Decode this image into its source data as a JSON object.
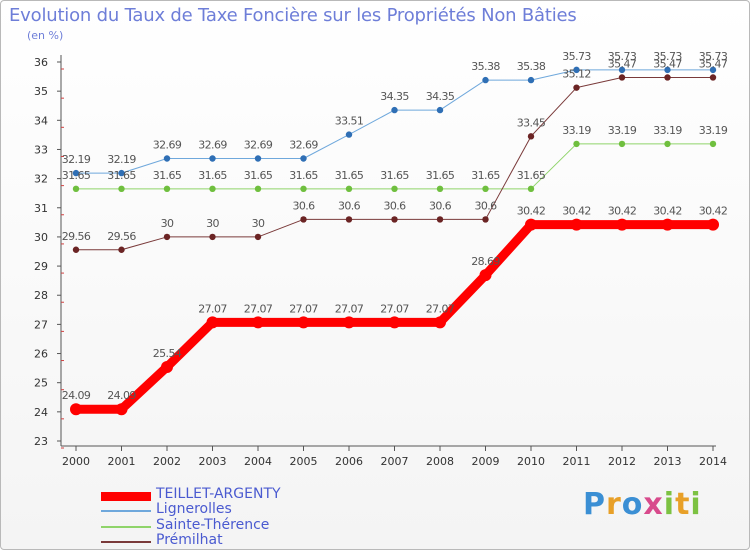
{
  "header": {
    "title": "Evolution du Taux de Taxe Foncière sur les Propriétés Non Bâties",
    "unit": "(en %)"
  },
  "logo": {
    "text": "Proxiti",
    "letters": [
      {
        "ch": "P",
        "color": "#3b8fd4"
      },
      {
        "ch": "r",
        "color": "#e8a028"
      },
      {
        "ch": "o",
        "color": "#3b8fd4"
      },
      {
        "ch": "x",
        "color": "#d84a8c"
      },
      {
        "ch": "i",
        "color": "#7cc242"
      },
      {
        "ch": "t",
        "color": "#e8a028"
      },
      {
        "ch": "i",
        "color": "#7cc242"
      }
    ]
  },
  "chart_data": {
    "type": "line",
    "title": "Evolution du Taux de Taxe Foncière sur les Propriétés Non Bâties",
    "ylabel": "(en %)",
    "ylim": [
      23,
      36
    ],
    "yticks": [
      23,
      24,
      25,
      26,
      27,
      28,
      29,
      30,
      31,
      32,
      33,
      34,
      35,
      36
    ],
    "categories": [
      "2000",
      "2001",
      "2002",
      "2003",
      "2004",
      "2005",
      "2006",
      "2007",
      "2008",
      "2009",
      "2010",
      "2011",
      "2012",
      "2013",
      "2014"
    ],
    "grid": false,
    "legend_position": "bottom-left",
    "series": [
      {
        "name": "Lignerolles",
        "color": "#6fa8dc",
        "markerColor": "#2f6fb5",
        "width": 1,
        "values": [
          32.19,
          32.19,
          32.69,
          32.69,
          32.69,
          32.69,
          33.51,
          34.35,
          34.35,
          35.38,
          35.38,
          35.73,
          35.73,
          35.73,
          35.73
        ],
        "labels": [
          "32.19",
          "32.19",
          "32.69",
          "32.69",
          "32.69",
          "32.69",
          "33.51",
          "34.35",
          "34.35",
          "35.38",
          "35.38",
          "35.73",
          "35.73",
          "35.73",
          "35.73"
        ]
      },
      {
        "name": "Sainte-Thérence",
        "color": "#8fd46a",
        "markerColor": "#6fbf3e",
        "width": 1,
        "values": [
          31.65,
          31.65,
          31.65,
          31.65,
          31.65,
          31.65,
          31.65,
          31.65,
          31.65,
          31.65,
          31.65,
          33.19,
          33.19,
          33.19,
          33.19
        ],
        "labels": [
          "31.65",
          "31.65",
          "31.65",
          "31.65",
          "31.65",
          "31.65",
          "31.65",
          "31.65",
          "31.65",
          "31.65",
          "31.65",
          "33.19",
          "33.19",
          "33.19",
          "33.19"
        ]
      },
      {
        "name": "Prémilhat",
        "color": "#7a3a3a",
        "markerColor": "#6b2424",
        "width": 1,
        "values": [
          29.56,
          29.56,
          30,
          30,
          30,
          30.6,
          30.6,
          30.6,
          30.6,
          30.6,
          33.45,
          35.12,
          35.47,
          35.47,
          35.47
        ],
        "labels": [
          "29.56",
          "29.56",
          "30",
          "30",
          "30",
          "30.6",
          "30.6",
          "30.6",
          "30.6",
          "30.6",
          "33.45",
          "35.12",
          "35.47",
          "35.47",
          "35.47"
        ]
      },
      {
        "name": "TEILLET-ARGENTY",
        "color": "#ff0000",
        "markerColor": "#ff0000",
        "width": 9,
        "values": [
          24.09,
          24.09,
          25.54,
          27.07,
          27.07,
          27.07,
          27.07,
          27.07,
          27.07,
          28.69,
          30.42,
          30.42,
          30.42,
          30.42,
          30.42
        ],
        "labels": [
          "24.09",
          "24.09",
          "25.54",
          "27.07",
          "27.07",
          "27.07",
          "27.07",
          "27.07",
          "27.07",
          "28.69",
          "30.42",
          "30.42",
          "30.42",
          "30.42",
          "30.42"
        ]
      }
    ],
    "legend": [
      {
        "name": "TEILLET-ARGENTY",
        "color": "#ff0000",
        "thick": true
      },
      {
        "name": "Lignerolles",
        "color": "#6fa8dc",
        "thick": false
      },
      {
        "name": "Sainte-Thérence",
        "color": "#8fd46a",
        "thick": false
      },
      {
        "name": "Prémilhat",
        "color": "#7a3a3a",
        "thick": false
      }
    ]
  }
}
